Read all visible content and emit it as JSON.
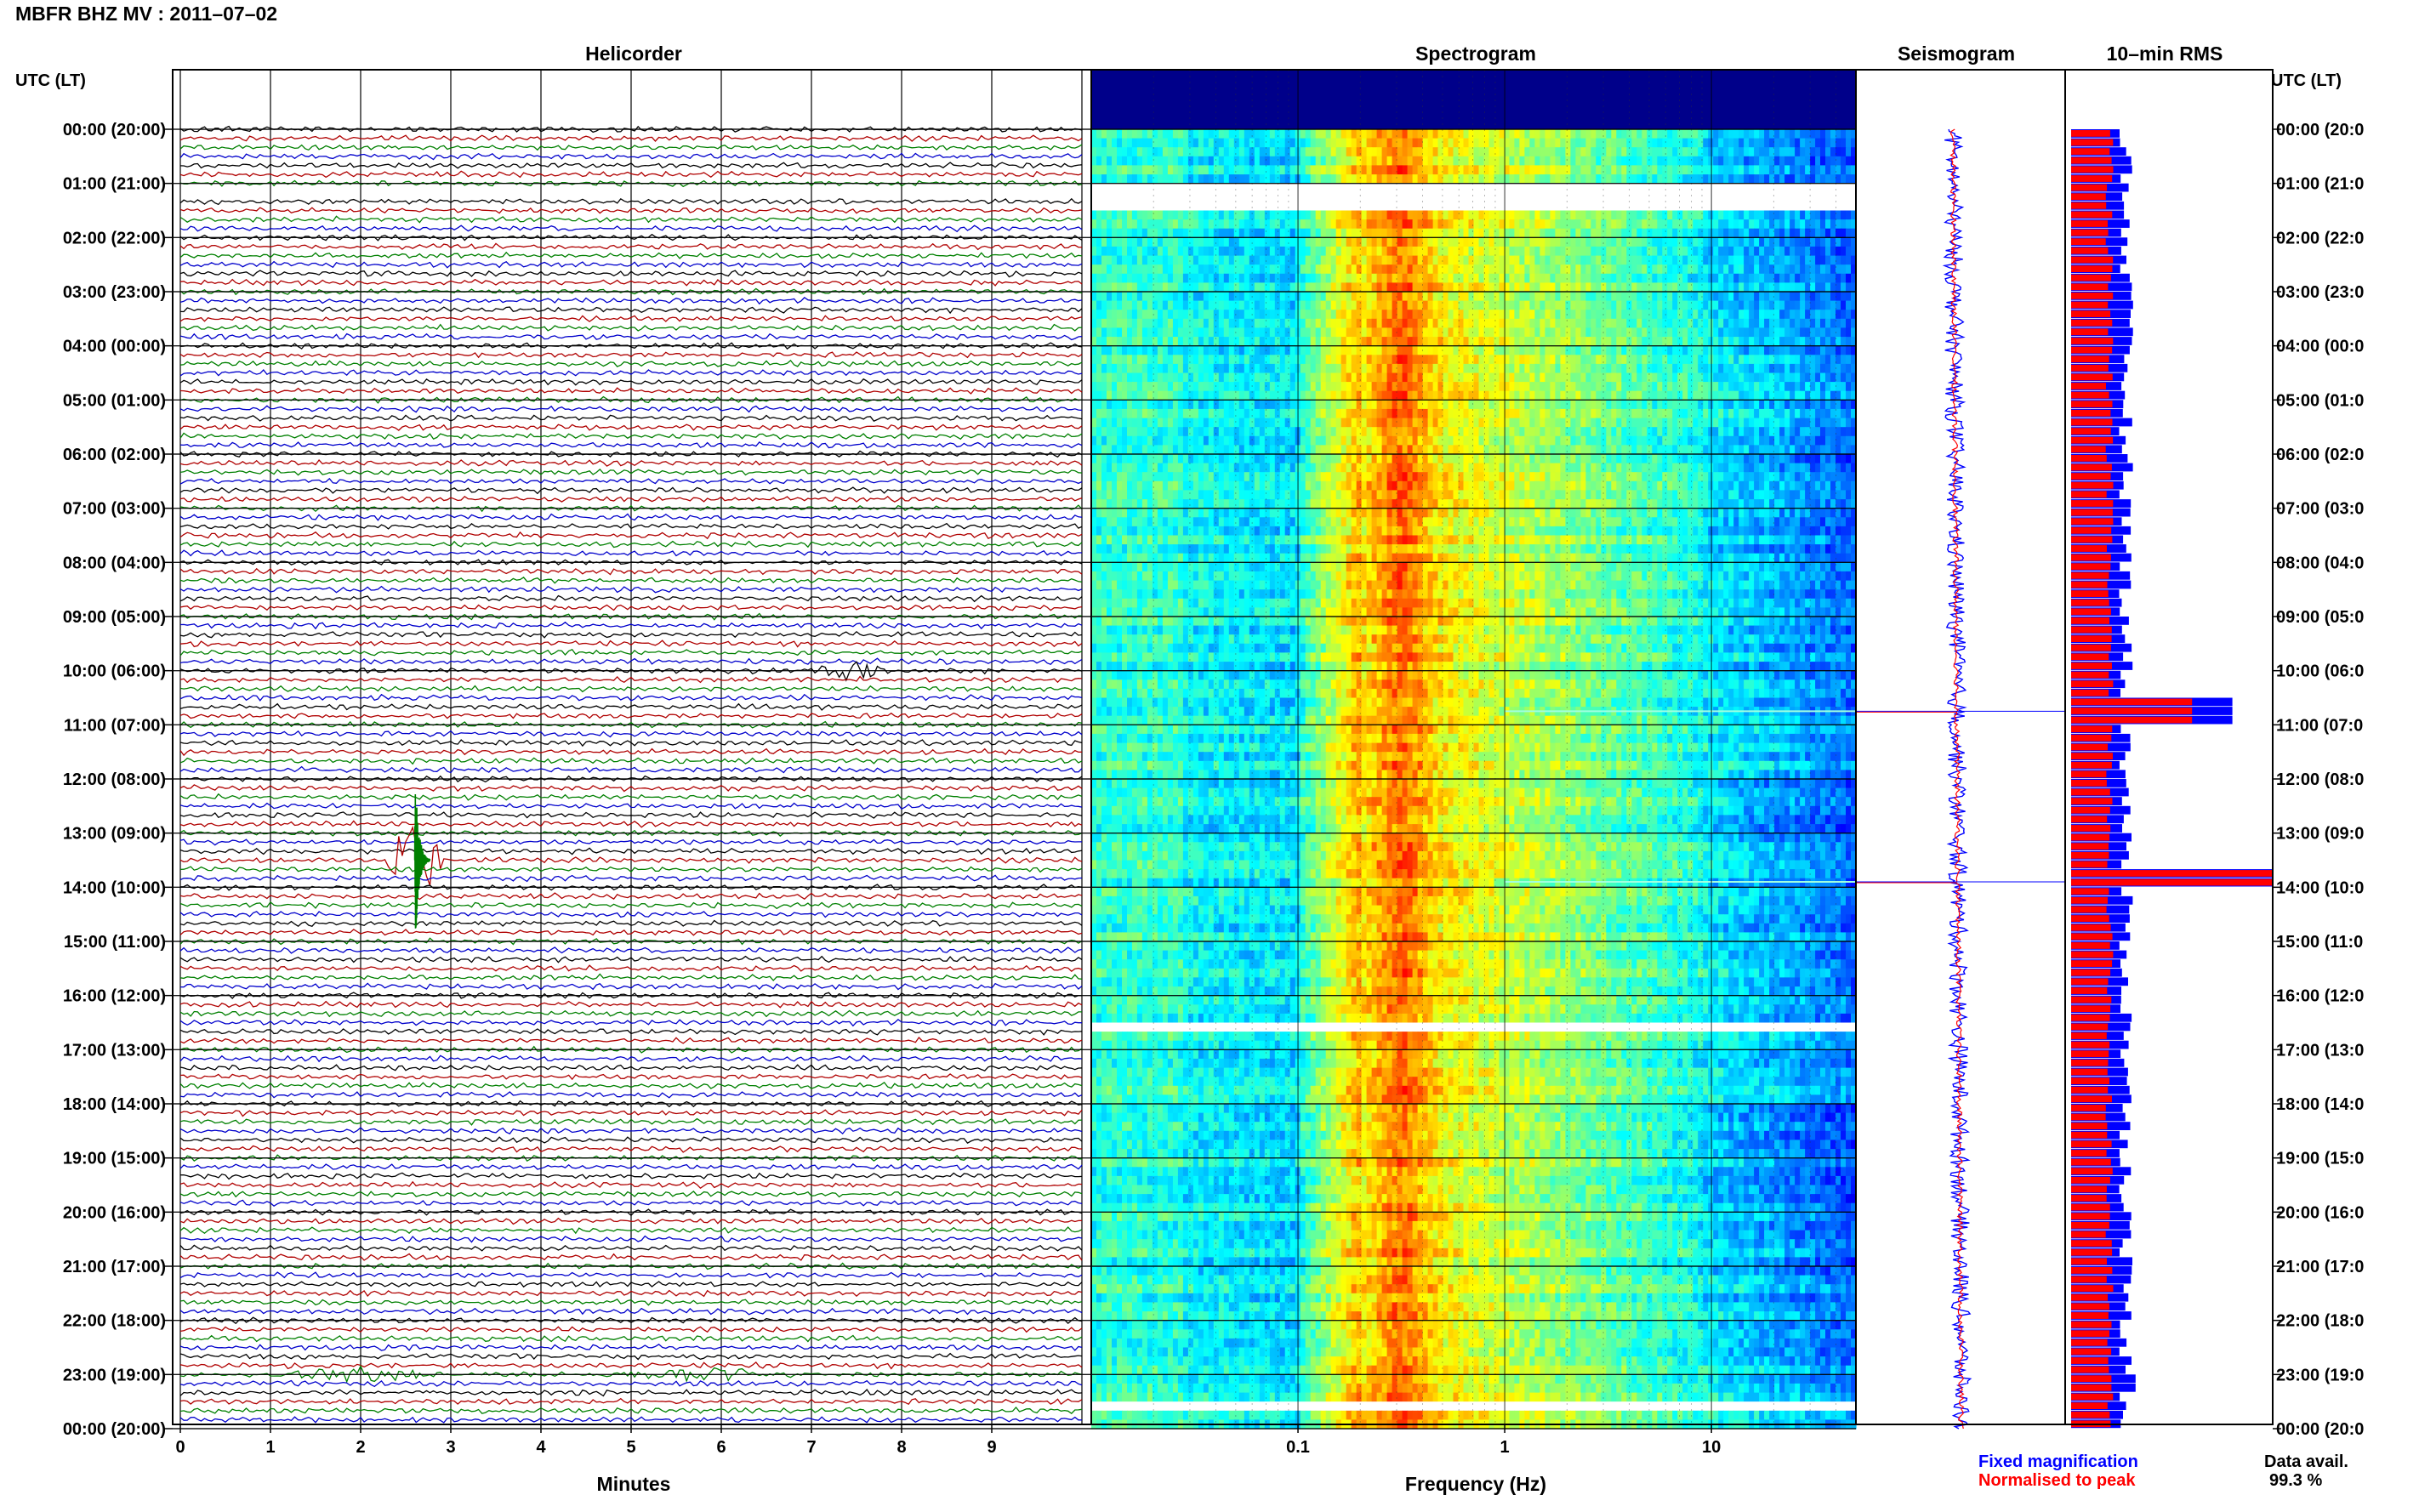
{
  "figure": {
    "title": "MBFR BHZ MV : 2011–07–02",
    "time_axis_label": "UTC (LT)",
    "footer_stat_label": "Data avail.",
    "footer_stat_value": "99.3 %"
  },
  "panels": {
    "helicorder": "Helicorder",
    "spectrogram": "Spectrogram",
    "seismogram": "Seismogram",
    "rms": "10–min RMS"
  },
  "legend": {
    "fixed": "Fixed magnification",
    "normalised": "Normalised to peak"
  },
  "colors": {
    "trace_cycle": [
      "#000000",
      "#b00000",
      "#008000",
      "#0000cc"
    ],
    "fixed": "#0000ff",
    "normalised": "#ff0000",
    "spectrogram_low": "#00008a",
    "spectrogram_high": "#f0f000"
  },
  "chart_data": [
    {
      "type": "line",
      "panel": "helicorder",
      "xlabel": "Minutes",
      "x_ticks": [
        0,
        1,
        2,
        3,
        4,
        5,
        6,
        7,
        8,
        9
      ],
      "xlim": [
        0,
        10
      ],
      "row_minutes": 10,
      "rows": 144,
      "y_ticks_utc": [
        "00:00 (20:00)",
        "01:00 (21:00)",
        "02:00 (22:00)",
        "03:00 (23:00)",
        "04:00 (00:00)",
        "05:00 (01:00)",
        "06:00 (02:00)",
        "07:00 (03:00)",
        "08:00 (04:00)",
        "09:00 (05:00)",
        "10:00 (06:00)",
        "11:00 (07:00)",
        "12:00 (08:00)",
        "13:00 (09:00)",
        "14:00 (10:00)",
        "15:00 (11:00)",
        "16:00 (12:00)",
        "17:00 (13:00)",
        "18:00 (14:00)",
        "19:00 (15:00)",
        "20:00 (16:00)",
        "21:00 (17:00)",
        "22:00 (18:00)",
        "23:00 (19:00)",
        "00:00 (20:00)"
      ],
      "y_ticks_right": [
        "00:00 (20:0",
        "01:00 (21:0",
        "02:00 (22:0",
        "03:00 (23:0",
        "04:00 (00:0",
        "05:00 (01:0",
        "06:00 (02:0",
        "07:00 (03:0",
        "08:00 (04:0",
        "09:00 (05:0",
        "10:00 (06:0",
        "11:00 (07:0",
        "12:00 (08:0",
        "13:00 (09:0",
        "14:00 (10:0",
        "15:00 (11:0",
        "16:00 (12:0",
        "17:00 (13:0",
        "18:00 (14:0",
        "19:00 (15:0",
        "20:00 (16:0",
        "21:00 (17:0",
        "22:00 (18:0",
        "23:00 (19:0",
        "00:00 (20:0"
      ],
      "events": [
        {
          "hour": 13.5,
          "minute": 2.6,
          "amplitude": 6.0,
          "duration_min": 0.35
        },
        {
          "hour": 10.15,
          "minute": 7.4,
          "amplitude": 1.2,
          "duration_min": 0.6
        },
        {
          "hour": 23.1,
          "minute": 2.0,
          "amplitude": 1.0,
          "duration_min": 1.2
        },
        {
          "hour": 23.1,
          "minute": 5.8,
          "amplitude": 0.9,
          "duration_min": 1.5
        }
      ],
      "gaps_hours": [
        [
          1.05,
          1.3
        ]
      ]
    },
    {
      "type": "heatmap",
      "panel": "spectrogram",
      "xlabel": "Frequency (Hz)",
      "x_scale": "log",
      "xlim": [
        0.01,
        50
      ],
      "x_tick_values": [
        0.1,
        1,
        10
      ],
      "x_tick_labels": [
        "0.1",
        "1",
        "10"
      ],
      "ylim_hours": [
        0,
        24
      ],
      "peak_band_hz": [
        0.2,
        0.5
      ],
      "gaps_hours": [
        [
          1.15,
          1.35
        ],
        [
          16.5,
          16.6
        ],
        [
          23.5,
          23.6
        ]
      ],
      "lines_hours": [
        10.75,
        13.9
      ]
    },
    {
      "type": "line",
      "panel": "seismogram",
      "series": [
        {
          "name": "Fixed magnification",
          "color": "#0000ff"
        },
        {
          "name": "Normalised to peak",
          "color": "#ff0000"
        }
      ],
      "spikes_hours": [
        10.75,
        13.9
      ]
    },
    {
      "type": "bar",
      "panel": "rms",
      "orientation": "horizontal",
      "interval_minutes": 10,
      "bars": 144,
      "series": [
        {
          "name": "Fixed magnification",
          "color": "#0000ff",
          "typical": 0.28
        },
        {
          "name": "Normalised to peak",
          "color": "#ff0000",
          "typical": 0.19
        }
      ],
      "peaks": [
        {
          "hour": 10.75,
          "fixed": 0.8,
          "normalised": 0.6
        },
        {
          "hour": 13.9,
          "fixed": 1.0,
          "normalised": 1.0
        },
        {
          "hour": 23.15,
          "fixed": 0.32,
          "normalised": 0.2
        }
      ]
    }
  ]
}
